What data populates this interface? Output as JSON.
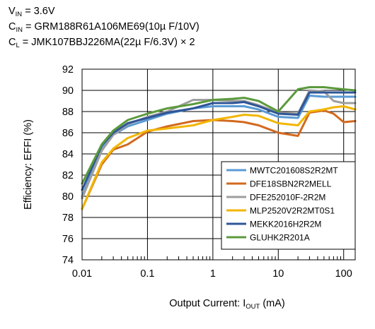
{
  "conditions": [
    {
      "sym": "V",
      "sub": "IN",
      "rest": " = 3.6V"
    },
    {
      "sym": "C",
      "sub": "IN",
      "rest": " = GRM188R61A106ME69(10µ F/10V)"
    },
    {
      "sym": "C",
      "sub": "L",
      "rest": " = JMK107BBJ226MA(22µ F/6.3V) × 2"
    }
  ],
  "chart_data": {
    "type": "line",
    "xscale": "log",
    "xlim": [
      0.01,
      150
    ],
    "ylim": [
      74,
      92
    ],
    "grid": true,
    "legend_position": "bottom-right",
    "xlabel": {
      "main": "Output Current: I",
      "sub": "OUT",
      "unit": " (mA)"
    },
    "ylabel": "Efficiency: EFFI (%)",
    "xticks": [
      {
        "v": 0.01,
        "label": "0.01"
      },
      {
        "v": 0.1,
        "label": "0.1"
      },
      {
        "v": 1,
        "label": "1"
      },
      {
        "v": 10,
        "label": "10"
      },
      {
        "v": 100,
        "label": "100"
      }
    ],
    "yticks": [
      74,
      76,
      78,
      80,
      82,
      84,
      86,
      88,
      90,
      92
    ],
    "series": [
      {
        "name": "MWTC201608S2R2MT",
        "color": "#5a9bd5",
        "points": [
          [
            0.01,
            80.0
          ],
          [
            0.02,
            84.5
          ],
          [
            0.03,
            85.8
          ],
          [
            0.05,
            86.6
          ],
          [
            0.1,
            87.2
          ],
          [
            0.2,
            87.8
          ],
          [
            0.5,
            88.3
          ],
          [
            1,
            88.5
          ],
          [
            2,
            88.5
          ],
          [
            3,
            88.5
          ],
          [
            5,
            88.2
          ],
          [
            10,
            87.5
          ],
          [
            20,
            87.4
          ],
          [
            30,
            89.5
          ],
          [
            50,
            89.4
          ],
          [
            70,
            89.4
          ],
          [
            100,
            89.4
          ],
          [
            150,
            89.4
          ]
        ]
      },
      {
        "name": "DFE18SBN2R2MELL",
        "color": "#d2691e",
        "points": [
          [
            0.01,
            78.8
          ],
          [
            0.02,
            83.0
          ],
          [
            0.03,
            84.4
          ],
          [
            0.05,
            84.9
          ],
          [
            0.1,
            86.1
          ],
          [
            0.2,
            86.6
          ],
          [
            0.5,
            87.1
          ],
          [
            1,
            87.2
          ],
          [
            2,
            87.1
          ],
          [
            3,
            87.0
          ],
          [
            5,
            86.7
          ],
          [
            10,
            86.0
          ],
          [
            20,
            85.7
          ],
          [
            30,
            87.9
          ],
          [
            50,
            88.1
          ],
          [
            70,
            87.8
          ],
          [
            100,
            87.0
          ],
          [
            150,
            87.1
          ]
        ]
      },
      {
        "name": "DFE252010F-2R2M",
        "color": "#9e9e9e",
        "points": [
          [
            0.01,
            79.8
          ],
          [
            0.02,
            84.3
          ],
          [
            0.03,
            85.8
          ],
          [
            0.05,
            86.8
          ],
          [
            0.1,
            87.5
          ],
          [
            0.2,
            88.0
          ],
          [
            0.5,
            89.1
          ],
          [
            1,
            89.1
          ],
          [
            2,
            89.0
          ],
          [
            3,
            89.0
          ],
          [
            5,
            88.6
          ],
          [
            10,
            87.9
          ],
          [
            20,
            87.8
          ],
          [
            30,
            90.0
          ],
          [
            50,
            89.9
          ],
          [
            70,
            89.0
          ],
          [
            100,
            88.8
          ],
          [
            150,
            88.8
          ]
        ]
      },
      {
        "name": "MLP2520V2R2MT0S1",
        "color": "#f2b600",
        "points": [
          [
            0.01,
            78.8
          ],
          [
            0.02,
            83.2
          ],
          [
            0.03,
            84.5
          ],
          [
            0.05,
            85.5
          ],
          [
            0.1,
            86.2
          ],
          [
            0.2,
            86.4
          ],
          [
            0.5,
            86.7
          ],
          [
            1,
            87.2
          ],
          [
            2,
            87.5
          ],
          [
            3,
            87.7
          ],
          [
            5,
            87.6
          ],
          [
            10,
            86.9
          ],
          [
            20,
            86.7
          ],
          [
            30,
            88.0
          ],
          [
            50,
            88.2
          ],
          [
            70,
            88.4
          ],
          [
            100,
            88.5
          ],
          [
            150,
            88.2
          ]
        ]
      },
      {
        "name": "MEKK2016H2R2M",
        "color": "#2f5597",
        "points": [
          [
            0.01,
            80.6
          ],
          [
            0.02,
            84.8
          ],
          [
            0.03,
            86.0
          ],
          [
            0.05,
            86.9
          ],
          [
            0.1,
            87.4
          ],
          [
            0.2,
            87.9
          ],
          [
            0.5,
            88.3
          ],
          [
            1,
            88.8
          ],
          [
            2,
            88.8
          ],
          [
            3,
            88.9
          ],
          [
            5,
            88.5
          ],
          [
            10,
            87.8
          ],
          [
            20,
            87.7
          ],
          [
            30,
            89.8
          ],
          [
            50,
            89.8
          ],
          [
            70,
            89.8
          ],
          [
            100,
            89.8
          ],
          [
            150,
            89.8
          ]
        ]
      },
      {
        "name": "GLUHK2R201A",
        "color": "#5b9a3c",
        "points": [
          [
            0.01,
            81.2
          ],
          [
            0.02,
            84.9
          ],
          [
            0.03,
            86.2
          ],
          [
            0.05,
            87.2
          ],
          [
            0.1,
            87.8
          ],
          [
            0.2,
            88.3
          ],
          [
            0.5,
            88.7
          ],
          [
            1,
            89.1
          ],
          [
            2,
            89.2
          ],
          [
            3,
            89.3
          ],
          [
            5,
            89.0
          ],
          [
            10,
            88.0
          ],
          [
            20,
            90.1
          ],
          [
            30,
            90.3
          ],
          [
            50,
            90.3
          ],
          [
            70,
            90.2
          ],
          [
            100,
            90.1
          ],
          [
            150,
            90.0
          ]
        ]
      }
    ]
  }
}
